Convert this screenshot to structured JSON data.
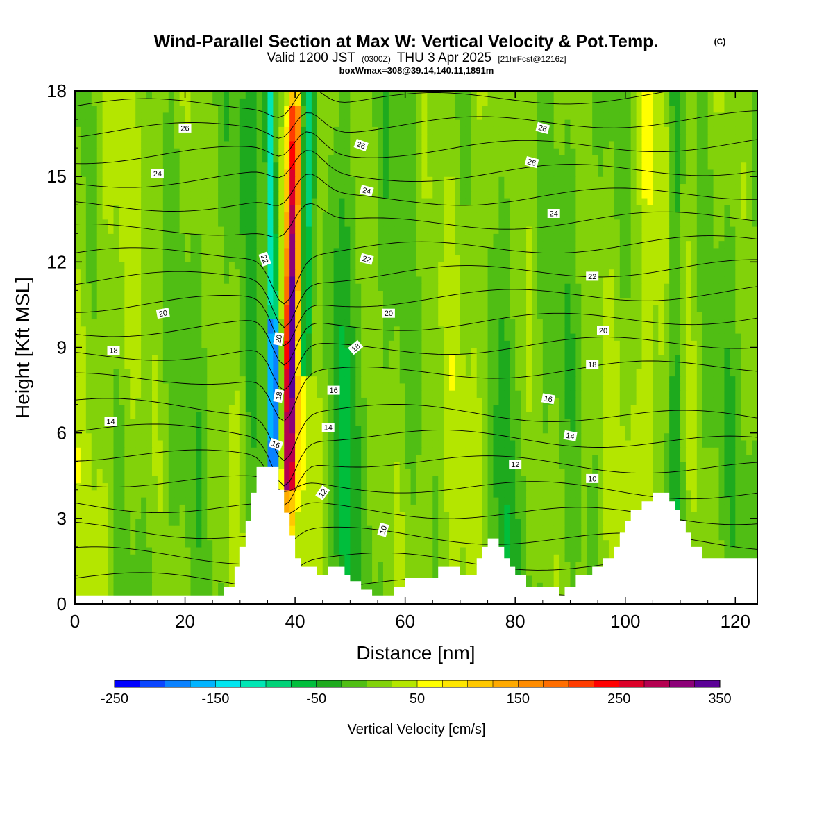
{
  "title": "Wind-Parallel Section at Max W: Vertical Velocity & Pot.Temp.",
  "title_mark": "(C)",
  "subtitle_a": "Valid 1200 JST",
  "subtitle_b": "(0300Z)",
  "subtitle_c": "THU 3 Apr 2025",
  "subtitle_d": "[21hrFcst@1216z]",
  "subtitle2": "boxWmax=308@39.14,140.11,1891m",
  "chart_data": {
    "type": "heatmap",
    "xlabel": "Distance [nm]",
    "ylabel": "Height [Kft MSL]",
    "xlim": [
      0,
      124
    ],
    "ylim": [
      0,
      18
    ],
    "x_ticks": [
      0,
      20,
      40,
      60,
      80,
      100,
      120
    ],
    "y_ticks": [
      0,
      3,
      6,
      9,
      12,
      15,
      18
    ],
    "grid": false,
    "colorbar": {
      "label": "Vertical Velocity [cm/s]",
      "min": -250,
      "max": 350,
      "step": 25,
      "tick_values": [
        -250,
        -150,
        -50,
        50,
        150,
        250,
        350
      ],
      "colors": [
        "#0000ff",
        "#0a46ff",
        "#0a82ff",
        "#00b4ff",
        "#00e6f0",
        "#00e6b4",
        "#00d278",
        "#00be3c",
        "#1eaa1e",
        "#50be14",
        "#82d20a",
        "#b4e600",
        "#ffff00",
        "#ffe600",
        "#ffc800",
        "#ffaa00",
        "#ff8c00",
        "#ff6e00",
        "#ff3c00",
        "#ff0000",
        "#dc0028",
        "#b40050",
        "#8c0078",
        "#5a0096"
      ]
    },
    "terrain_profile_kft": [
      [
        0,
        0.3
      ],
      [
        27,
        0.3
      ],
      [
        27,
        0.6
      ],
      [
        29,
        0.6
      ],
      [
        29,
        1.3
      ],
      [
        30,
        1.3
      ],
      [
        30,
        2.0
      ],
      [
        31,
        2.0
      ],
      [
        31,
        2.9
      ],
      [
        32,
        2.9
      ],
      [
        32,
        3.9
      ],
      [
        33,
        3.9
      ],
      [
        33,
        4.8
      ],
      [
        37,
        4.8
      ],
      [
        37,
        4.0
      ],
      [
        38,
        4.0
      ],
      [
        38,
        3.2
      ],
      [
        39,
        3.2
      ],
      [
        39,
        2.4
      ],
      [
        40,
        2.4
      ],
      [
        40,
        1.6
      ],
      [
        41,
        1.6
      ],
      [
        41,
        1.3
      ],
      [
        44,
        1.3
      ],
      [
        44,
        1.0
      ],
      [
        46,
        1.0
      ],
      [
        46,
        1.3
      ],
      [
        49,
        1.3
      ],
      [
        49,
        1.0
      ],
      [
        50,
        1.0
      ],
      [
        50,
        0.8
      ],
      [
        52,
        0.8
      ],
      [
        52,
        0.5
      ],
      [
        54,
        0.5
      ],
      [
        54,
        0.3
      ],
      [
        58,
        0.3
      ],
      [
        58,
        0.6
      ],
      [
        60,
        0.6
      ],
      [
        60,
        0.9
      ],
      [
        66,
        0.9
      ],
      [
        66,
        1.3
      ],
      [
        70,
        1.3
      ],
      [
        70,
        1.0
      ],
      [
        73,
        1.0
      ],
      [
        73,
        1.6
      ],
      [
        74,
        1.6
      ],
      [
        74,
        2.0
      ],
      [
        75,
        2.0
      ],
      [
        75,
        2.3
      ],
      [
        77,
        2.3
      ],
      [
        77,
        2.0
      ],
      [
        78,
        2.0
      ],
      [
        78,
        1.6
      ],
      [
        79,
        1.6
      ],
      [
        79,
        1.3
      ],
      [
        80,
        1.3
      ],
      [
        80,
        1.0
      ],
      [
        82,
        1.0
      ],
      [
        82,
        0.6
      ],
      [
        88,
        0.6
      ],
      [
        88,
        0.3
      ],
      [
        89,
        0.3
      ],
      [
        89,
        0.6
      ],
      [
        91,
        0.6
      ],
      [
        91,
        1.0
      ],
      [
        94,
        1.0
      ],
      [
        94,
        1.3
      ],
      [
        96,
        1.3
      ],
      [
        96,
        1.6
      ],
      [
        98,
        1.6
      ],
      [
        98,
        2.0
      ],
      [
        99,
        2.0
      ],
      [
        99,
        2.5
      ],
      [
        100,
        2.5
      ],
      [
        100,
        2.9
      ],
      [
        101,
        2.9
      ],
      [
        101,
        3.3
      ],
      [
        103,
        3.3
      ],
      [
        103,
        3.6
      ],
      [
        105,
        3.6
      ],
      [
        105,
        3.9
      ],
      [
        108,
        3.9
      ],
      [
        108,
        3.6
      ],
      [
        109,
        3.6
      ],
      [
        109,
        3.3
      ],
      [
        110,
        3.3
      ],
      [
        110,
        2.9
      ],
      [
        111,
        2.9
      ],
      [
        111,
        2.5
      ],
      [
        112,
        2.5
      ],
      [
        112,
        2.0
      ],
      [
        114,
        2.0
      ],
      [
        114,
        1.6
      ],
      [
        124,
        1.6
      ],
      [
        124,
        0
      ]
    ],
    "isentropes_c": {
      "levels": [
        8,
        9,
        10,
        11,
        12,
        13,
        14,
        15,
        16,
        17,
        18,
        19,
        20,
        21,
        22,
        23,
        24,
        25,
        26,
        27
      ],
      "labels": [
        {
          "text": "26",
          "x": 20,
          "y": 16.7,
          "angle": 0
        },
        {
          "text": "24",
          "x": 15,
          "y": 15.1,
          "angle": 0
        },
        {
          "text": "20",
          "x": 16,
          "y": 10.2,
          "angle": -10
        },
        {
          "text": "18",
          "x": 7,
          "y": 8.9,
          "angle": 0
        },
        {
          "text": "14",
          "x": 6.5,
          "y": 6.4,
          "angle": 0
        },
        {
          "text": "22",
          "x": 34.5,
          "y": 12.1,
          "angle": 70
        },
        {
          "text": "20",
          "x": 37,
          "y": 9.3,
          "angle": -80
        },
        {
          "text": "18",
          "x": 37,
          "y": 7.3,
          "angle": -80
        },
        {
          "text": "16",
          "x": 36.5,
          "y": 5.6,
          "angle": 20
        },
        {
          "text": "26",
          "x": 52,
          "y": 16.1,
          "angle": 20
        },
        {
          "text": "24",
          "x": 53,
          "y": 14.5,
          "angle": 15
        },
        {
          "text": "22",
          "x": 53,
          "y": 12.1,
          "angle": 15
        },
        {
          "text": "20",
          "x": 57,
          "y": 10.2,
          "angle": 0
        },
        {
          "text": "18",
          "x": 51,
          "y": 9.0,
          "angle": -40
        },
        {
          "text": "16",
          "x": 47,
          "y": 7.5,
          "angle": 0
        },
        {
          "text": "14",
          "x": 46,
          "y": 6.2,
          "angle": 0
        },
        {
          "text": "12",
          "x": 45,
          "y": 3.9,
          "angle": -55
        },
        {
          "text": "10",
          "x": 56,
          "y": 2.6,
          "angle": -75
        },
        {
          "text": "28",
          "x": 85,
          "y": 16.7,
          "angle": 15
        },
        {
          "text": "26",
          "x": 83,
          "y": 15.5,
          "angle": 15
        },
        {
          "text": "24",
          "x": 87,
          "y": 13.7,
          "angle": 0
        },
        {
          "text": "22",
          "x": 94,
          "y": 11.5,
          "angle": 0
        },
        {
          "text": "20",
          "x": 96,
          "y": 9.6,
          "angle": 0
        },
        {
          "text": "18",
          "x": 94,
          "y": 8.4,
          "angle": 0
        },
        {
          "text": "16",
          "x": 86,
          "y": 7.2,
          "angle": 10
        },
        {
          "text": "14",
          "x": 90,
          "y": 5.9,
          "angle": 10
        },
        {
          "text": "12",
          "x": 80,
          "y": 4.9,
          "angle": 0
        },
        {
          "text": "10",
          "x": 94,
          "y": 4.4,
          "angle": 0
        }
      ]
    },
    "updraft_core": {
      "x_bottom": 38.5,
      "x_top": 40.0,
      "peak_cm_s": 308
    },
    "downdraft_core": {
      "x_bottom": 35.8,
      "x_top": 36.5,
      "min_cm_s": -250
    }
  }
}
